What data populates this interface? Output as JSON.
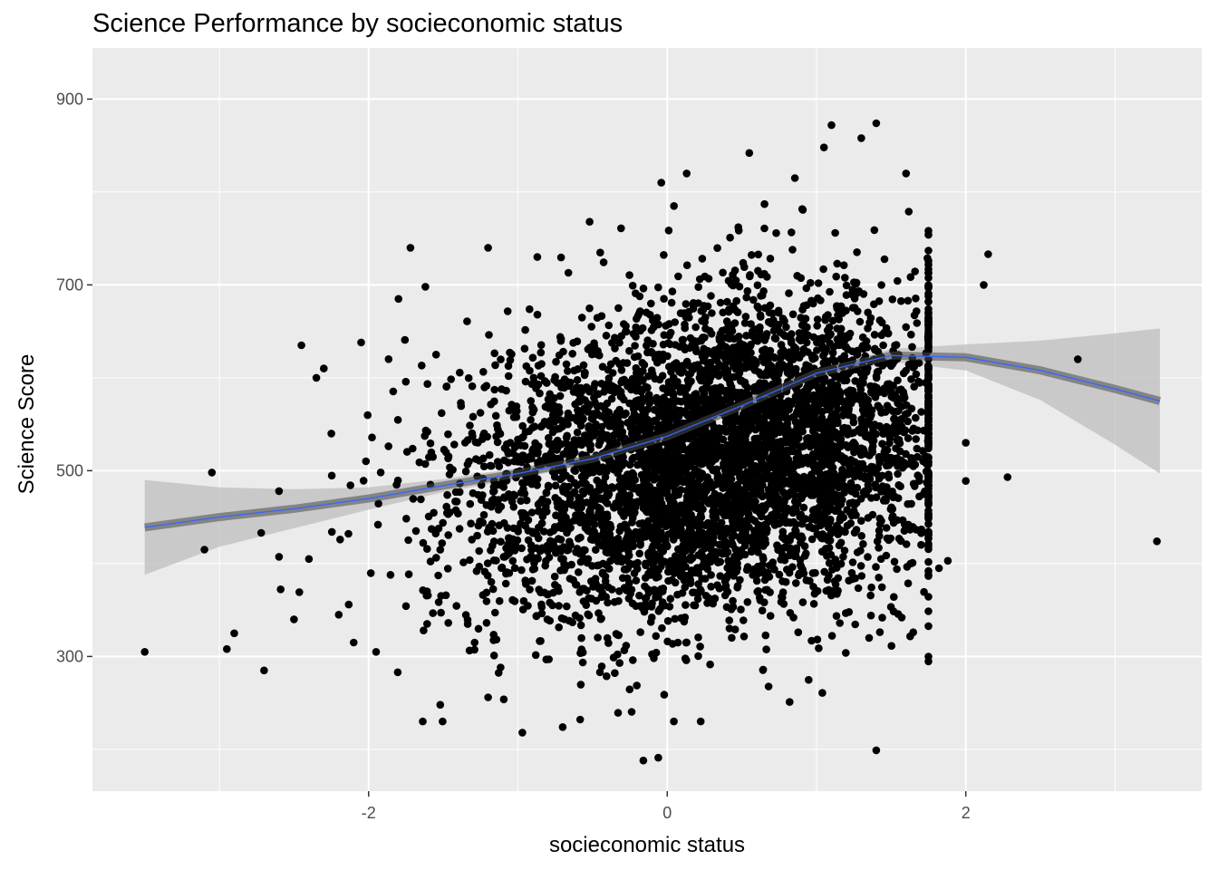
{
  "chart_data": {
    "type": "scatter",
    "title": "Science Performance by socieconomic status",
    "xlabel": "socieconomic status",
    "ylabel": "Science Score",
    "xlim": [
      -3.85,
      3.58
    ],
    "ylim": [
      155,
      955
    ],
    "x_ticks": [
      -2,
      0,
      2
    ],
    "y_ticks": [
      300,
      500,
      700,
      900
    ],
    "grid": true,
    "panel_background": "#ebebeb",
    "point_color": "#000000",
    "smooth_color": "#3366ff",
    "ribbon_color": "#bdbdbd",
    "points_summary": {
      "n_points_approx": 5000,
      "cluster_center": [
        0.6,
        590
      ],
      "x_range": [
        -3.5,
        3.3
      ],
      "y_range": [
        190,
        875
      ]
    },
    "outlier_points": [
      {
        "x": -3.5,
        "y": 305
      },
      {
        "x": -3.05,
        "y": 498
      },
      {
        "x": -3.1,
        "y": 415
      },
      {
        "x": -2.9,
        "y": 325
      },
      {
        "x": -2.95,
        "y": 308
      },
      {
        "x": -2.7,
        "y": 285
      },
      {
        "x": -2.72,
        "y": 433
      },
      {
        "x": -2.6,
        "y": 478
      },
      {
        "x": -2.5,
        "y": 340
      },
      {
        "x": -2.45,
        "y": 635
      },
      {
        "x": -2.35,
        "y": 600
      },
      {
        "x": -2.3,
        "y": 610
      },
      {
        "x": -2.25,
        "y": 540
      },
      {
        "x": -2.4,
        "y": 405
      },
      {
        "x": -2.2,
        "y": 345
      },
      {
        "x": -2.1,
        "y": 315
      },
      {
        "x": -2.05,
        "y": 638
      },
      {
        "x": -1.95,
        "y": 305
      },
      {
        "x": -1.8,
        "y": 685
      },
      {
        "x": -1.72,
        "y": 740
      },
      {
        "x": -1.62,
        "y": 698
      },
      {
        "x": -1.52,
        "y": 248
      },
      {
        "x": -1.2,
        "y": 740
      },
      {
        "x": -1.2,
        "y": 256
      },
      {
        "x": -0.97,
        "y": 218
      },
      {
        "x": -0.87,
        "y": 730
      },
      {
        "x": -0.7,
        "y": 224
      },
      {
        "x": -0.52,
        "y": 768
      },
      {
        "x": -0.16,
        "y": 188
      },
      {
        "x": -0.06,
        "y": 191
      },
      {
        "x": -0.04,
        "y": 810
      },
      {
        "x": 0.13,
        "y": 820
      },
      {
        "x": 0.55,
        "y": 842
      },
      {
        "x": 0.82,
        "y": 251
      },
      {
        "x": 1.05,
        "y": 848
      },
      {
        "x": 1.1,
        "y": 872
      },
      {
        "x": 1.3,
        "y": 858
      },
      {
        "x": 1.4,
        "y": 874
      },
      {
        "x": 1.4,
        "y": 199
      },
      {
        "x": 1.6,
        "y": 820
      },
      {
        "x": 1.63,
        "y": 400
      },
      {
        "x": 1.82,
        "y": 395
      },
      {
        "x": 1.88,
        "y": 403
      },
      {
        "x": 2.0,
        "y": 489
      },
      {
        "x": 2.0,
        "y": 530
      },
      {
        "x": 2.12,
        "y": 700
      },
      {
        "x": 2.15,
        "y": 733
      },
      {
        "x": 2.28,
        "y": 493
      },
      {
        "x": 2.75,
        "y": 620
      },
      {
        "x": 3.28,
        "y": 424
      }
    ],
    "smooth_line": {
      "x": [
        -3.5,
        -3.0,
        -2.5,
        -2.0,
        -1.5,
        -1.0,
        -0.5,
        0.0,
        0.5,
        1.0,
        1.5,
        2.0,
        2.5,
        3.0,
        3.3
      ],
      "y": [
        439,
        450,
        459,
        470,
        484,
        497,
        513,
        537,
        570,
        605,
        624,
        622,
        608,
        588,
        575
      ],
      "ymin": [
        388,
        418,
        438,
        458,
        477,
        491,
        508,
        532,
        565,
        600,
        617,
        608,
        576,
        528,
        497
      ],
      "ymax": [
        490,
        482,
        480,
        482,
        491,
        503,
        518,
        542,
        575,
        610,
        631,
        636,
        640,
        648,
        653
      ]
    }
  }
}
